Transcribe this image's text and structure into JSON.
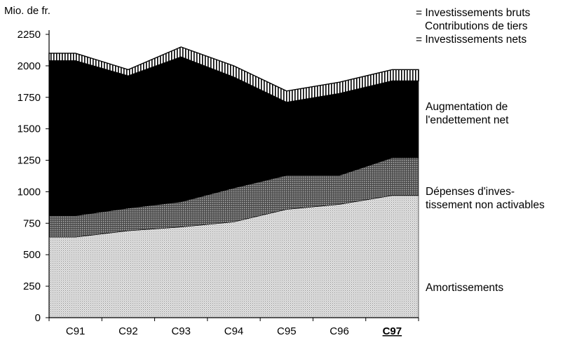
{
  "chart_data": {
    "type": "area",
    "title": "",
    "ylabel": "Mio. de fr.",
    "xlabel": "",
    "categories": [
      "C91",
      "C92",
      "C93",
      "C94",
      "C95",
      "C96",
      "C97"
    ],
    "highlight_category": "C97",
    "ylim": [
      0,
      2250
    ],
    "yticks": [
      0,
      250,
      500,
      750,
      1000,
      1250,
      1500,
      1750,
      2000,
      2250
    ],
    "stacked": true,
    "grid": false,
    "series": [
      {
        "name": "Amortissements",
        "label": "Amortissements",
        "fill": "#cfcfcf",
        "values": [
          640,
          690,
          720,
          760,
          860,
          900,
          970
        ]
      },
      {
        "name": "Dépenses d'investissement non activables",
        "label_lines": [
          "Dépenses d'inves-",
          "tissement non activables"
        ],
        "fill": "#6e6e6e",
        "values": [
          170,
          180,
          200,
          270,
          270,
          230,
          300
        ]
      },
      {
        "name": "Augmentation de l'endettement net",
        "label_lines": [
          "Augmentation de",
          "l'endettement net"
        ],
        "fill": "#000000",
        "values": [
          1230,
          1050,
          1150,
          880,
          580,
          650,
          610
        ]
      },
      {
        "name": "Contributions de tiers",
        "fill": "#ffffff",
        "values": [
          60,
          50,
          80,
          90,
          90,
          90,
          90
        ]
      }
    ],
    "legend": {
      "placement": "top-right",
      "lines": [
        "= Investissements bruts",
        "Contributions de tiers",
        "= Investissements nets"
      ]
    },
    "right_annotations": [
      "Augmentation de l'endettement net",
      "Dépenses d'investissement non activables",
      "Amortissements"
    ]
  }
}
